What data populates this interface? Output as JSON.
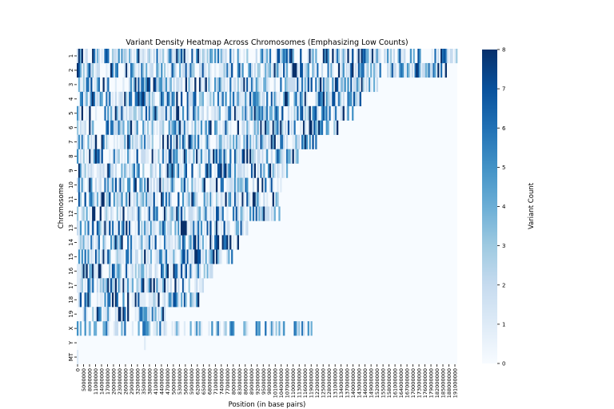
{
  "chart_data": {
    "type": "heatmap",
    "title": "Variant Density Heatmap Across Chromosomes (Emphasizing Low Counts)",
    "xlabel": "Position (in base pairs)",
    "ylabel": "Chromosome",
    "colorbar_label": "Variant Count",
    "colormap": "Blues",
    "color_range": [
      0,
      8
    ],
    "colorbar_ticks": [
      0,
      1,
      2,
      3,
      4,
      5,
      6,
      7,
      8
    ],
    "bin_size": 1000000,
    "rows": [
      "1",
      "2",
      "3",
      "4",
      "5",
      "6",
      "7",
      "8",
      "9",
      "10",
      "11",
      "12",
      "13",
      "14",
      "15",
      "16",
      "17",
      "18",
      "19",
      "X",
      "Y",
      "MT"
    ],
    "row_lengths_bins": [
      249,
      242,
      198,
      190,
      181,
      171,
      159,
      145,
      138,
      134,
      135,
      133,
      114,
      107,
      102,
      90,
      83,
      80,
      59,
      156,
      57,
      1
    ],
    "columns_bins": 249,
    "x_tick_labels": [
      "0",
      "5000000",
      "8000000",
      "11000000",
      "14000000",
      "17000000",
      "20000000",
      "23000000",
      "26000000",
      "29000000",
      "32000000",
      "35000000",
      "38000000",
      "41000000",
      "44000000",
      "47000000",
      "50000000",
      "53000000",
      "56000000",
      "59000000",
      "62000000",
      "65000000",
      "68000000",
      "71000000",
      "74000000",
      "77000000",
      "80000000",
      "83000000",
      "86000000",
      "89000000",
      "92000000",
      "95000000",
      "98000000",
      "101000000",
      "104000000",
      "107000000",
      "110000000",
      "113000000",
      "116000000",
      "119000000",
      "122000000",
      "125000000",
      "128000000",
      "131000000",
      "134000000",
      "137000000",
      "140000000",
      "143000000",
      "146000000",
      "149000000",
      "152000000",
      "155000000",
      "158000000",
      "161000000",
      "164000000",
      "167000000",
      "170000000",
      "173000000",
      "176000000",
      "179000000",
      "182000000",
      "185000000",
      "188000000",
      "191000000"
    ],
    "notes_visible": {
      "Y": "mostly empty, isolated variants near 44000000 and 89000000",
      "MT": "single low count near position 0"
    }
  }
}
